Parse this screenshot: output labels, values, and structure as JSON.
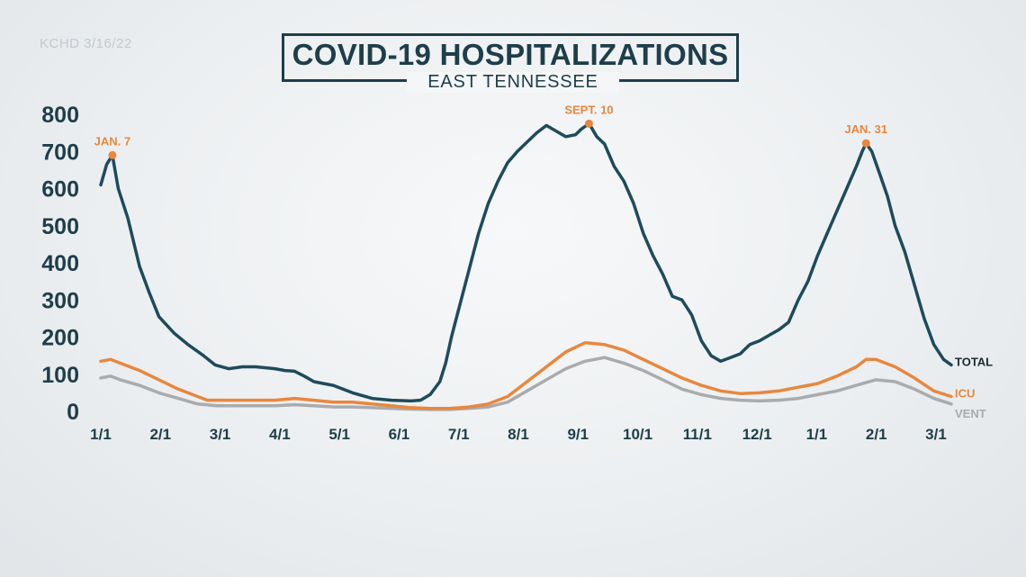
{
  "source": "KCHD 3/16/22",
  "chart_data": {
    "type": "line",
    "title": "COVID-19 HOSPITALIZATIONS",
    "subtitle": "EAST TENNESSEE",
    "ylim": [
      0,
      800
    ],
    "y_ticks": [
      "0",
      "100",
      "200",
      "300",
      "400",
      "500",
      "600",
      "700",
      "800"
    ],
    "x_ticks": [
      "1/1",
      "2/1",
      "3/1",
      "4/1",
      "5/1",
      "6/1",
      "7/1",
      "8/1",
      "9/1",
      "10/1",
      "11/1",
      "12/1",
      "1/1",
      "2/1",
      "3/1"
    ],
    "grid": false,
    "colors": {
      "total": "#1d4b5c",
      "icu": "#e8873e",
      "vent": "#a9abad",
      "annotation": "#e8873e",
      "text": "#1d3e4a"
    },
    "annotations": [
      {
        "label": "JAN. 7",
        "x": 6,
        "y": 690
      },
      {
        "label": "SEPT. 10",
        "x": 252,
        "y": 775
      },
      {
        "label": "JAN. 31",
        "x": 395,
        "y": 722
      }
    ],
    "series": [
      {
        "name": "TOTAL",
        "key": "total",
        "x": [
          0,
          3,
          6,
          9,
          14,
          20,
          25,
          30,
          38,
          45,
          53,
          59,
          66,
          73,
          80,
          90,
          95,
          100,
          105,
          110,
          115,
          120,
          125,
          130,
          140,
          150,
          160,
          165,
          170,
          175,
          178,
          181,
          185,
          190,
          195,
          200,
          205,
          210,
          215,
          220,
          225,
          230,
          235,
          240,
          245,
          248,
          252,
          256,
          260,
          265,
          270,
          275,
          280,
          285,
          290,
          295,
          300,
          305,
          310,
          315,
          320,
          325,
          330,
          335,
          340,
          345,
          350,
          355,
          360,
          365,
          370,
          375,
          380,
          385,
          390,
          393,
          395,
          398,
          402,
          406,
          410,
          415,
          420,
          425,
          430,
          435,
          439
        ],
        "values": [
          610,
          665,
          690,
          600,
          520,
          390,
          320,
          255,
          210,
          180,
          150,
          125,
          115,
          120,
          120,
          115,
          110,
          108,
          95,
          80,
          75,
          70,
          60,
          50,
          35,
          30,
          28,
          30,
          45,
          80,
          130,
          200,
          280,
          380,
          480,
          560,
          620,
          670,
          700,
          725,
          750,
          770,
          755,
          740,
          745,
          760,
          775,
          740,
          720,
          660,
          620,
          560,
          480,
          420,
          370,
          310,
          300,
          260,
          190,
          150,
          135,
          145,
          155,
          180,
          190,
          205,
          220,
          240,
          300,
          350,
          420,
          480,
          540,
          600,
          660,
          700,
          722,
          700,
          640,
          580,
          500,
          430,
          340,
          250,
          180,
          140,
          125
        ]
      },
      {
        "name": "ICU",
        "key": "icu",
        "x": [
          0,
          5,
          10,
          20,
          30,
          40,
          50,
          55,
          60,
          70,
          80,
          90,
          100,
          110,
          120,
          130,
          140,
          150,
          160,
          170,
          180,
          190,
          200,
          210,
          220,
          230,
          240,
          250,
          260,
          270,
          280,
          290,
          300,
          310,
          320,
          330,
          340,
          350,
          360,
          370,
          380,
          390,
          395,
          400,
          410,
          420,
          430,
          439
        ],
        "values": [
          135,
          140,
          130,
          110,
          85,
          60,
          40,
          30,
          30,
          30,
          30,
          30,
          35,
          30,
          25,
          25,
          20,
          15,
          10,
          8,
          8,
          12,
          20,
          40,
          80,
          120,
          160,
          185,
          180,
          165,
          140,
          115,
          90,
          70,
          55,
          48,
          50,
          55,
          65,
          75,
          95,
          120,
          140,
          140,
          120,
          90,
          55,
          40
        ]
      },
      {
        "name": "VENT",
        "key": "vent",
        "x": [
          0,
          5,
          10,
          20,
          30,
          40,
          50,
          60,
          70,
          80,
          90,
          100,
          110,
          120,
          130,
          140,
          150,
          160,
          170,
          180,
          190,
          200,
          210,
          220,
          230,
          240,
          250,
          260,
          270,
          280,
          290,
          300,
          310,
          320,
          330,
          340,
          350,
          360,
          370,
          380,
          390,
          400,
          410,
          420,
          430,
          439
        ],
        "values": [
          90,
          95,
          85,
          70,
          50,
          35,
          20,
          15,
          15,
          15,
          15,
          18,
          15,
          12,
          12,
          10,
          8,
          6,
          5,
          5,
          8,
          12,
          25,
          55,
          85,
          115,
          135,
          145,
          130,
          110,
          85,
          60,
          45,
          35,
          30,
          28,
          30,
          35,
          45,
          55,
          70,
          85,
          80,
          60,
          35,
          20
        ]
      }
    ]
  }
}
